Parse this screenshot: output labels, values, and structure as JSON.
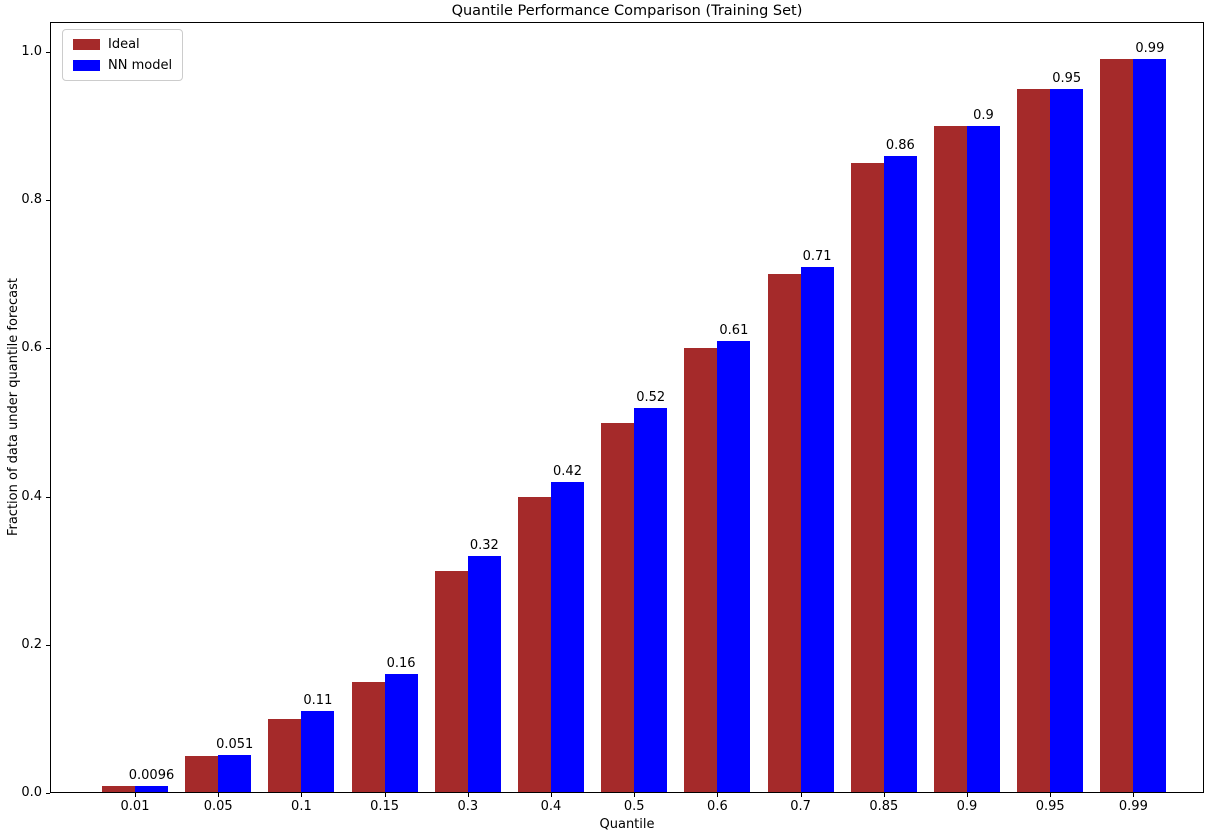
{
  "chart_data": {
    "type": "bar",
    "title": "Quantile Performance Comparison (Training Set)",
    "xlabel": "Quantile",
    "ylabel": "Fraction of data under quantile forecast",
    "categories": [
      "0.01",
      "0.05",
      "0.1",
      "0.15",
      "0.3",
      "0.4",
      "0.5",
      "0.6",
      "0.7",
      "0.85",
      "0.9",
      "0.95",
      "0.99"
    ],
    "series": [
      {
        "name": "Ideal",
        "color": "#A52A2A",
        "values": [
          0.01,
          0.05,
          0.1,
          0.15,
          0.3,
          0.4,
          0.5,
          0.6,
          0.7,
          0.85,
          0.9,
          0.95,
          0.99
        ]
      },
      {
        "name": "NN model",
        "color": "#0000FF",
        "values": [
          0.0096,
          0.051,
          0.11,
          0.16,
          0.32,
          0.42,
          0.52,
          0.61,
          0.71,
          0.86,
          0.9,
          0.95,
          0.99
        ],
        "bar_labels": [
          "0.0096",
          "0.051",
          "0.11",
          "0.16",
          "0.32",
          "0.42",
          "0.52",
          "0.61",
          "0.71",
          "0.86",
          "0.9",
          "0.95",
          "0.99"
        ]
      }
    ],
    "yticks": [
      "0.0",
      "0.2",
      "0.4",
      "0.6",
      "0.8",
      "1.0"
    ],
    "ytick_values": [
      0.0,
      0.2,
      0.4,
      0.6,
      0.8,
      1.0
    ],
    "ylim": [
      0,
      1.04
    ],
    "grid": false,
    "legend_position": "upper left",
    "bar_labels_on": "NN model"
  }
}
